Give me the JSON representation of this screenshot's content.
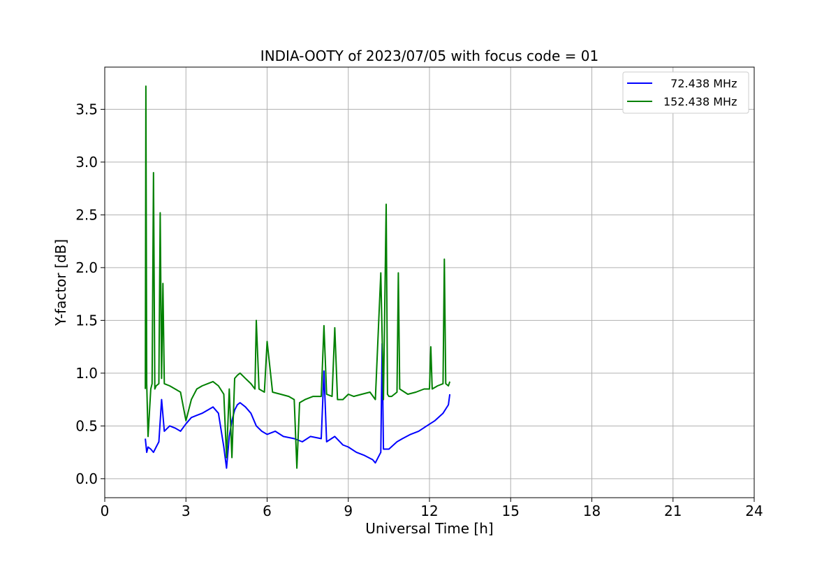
{
  "chart_data": {
    "type": "line",
    "title": "INDIA-OOTY of 2023/07/05 with focus code = 01",
    "xlabel": "Universal Time [h]",
    "ylabel": "Y-factor [dB]",
    "xlim": [
      0,
      24
    ],
    "ylim": [
      -0.18,
      3.9
    ],
    "xticks": [
      0,
      3,
      6,
      9,
      12,
      15,
      18,
      21,
      24
    ],
    "xtick_labels": [
      "0",
      "3",
      "6",
      "9",
      "12",
      "15",
      "18",
      "21",
      "24"
    ],
    "yticks": [
      0.0,
      0.5,
      1.0,
      1.5,
      2.0,
      2.5,
      3.0,
      3.5
    ],
    "ytick_labels": [
      "0.0",
      "0.5",
      "1.0",
      "1.5",
      "2.0",
      "2.5",
      "3.0",
      "3.5"
    ],
    "grid": true,
    "legend_position": "top-right",
    "series": [
      {
        "name": "  72.438 MHz",
        "color": "#0000ff",
        "x": [
          1.5,
          1.55,
          1.6,
          1.7,
          1.8,
          1.9,
          2.0,
          2.1,
          2.2,
          2.4,
          2.6,
          2.8,
          3.0,
          3.2,
          3.4,
          3.6,
          3.8,
          4.0,
          4.2,
          4.4,
          4.5,
          4.6,
          4.7,
          4.8,
          4.9,
          5.0,
          5.2,
          5.4,
          5.6,
          5.8,
          6.0,
          6.3,
          6.6,
          7.0,
          7.3,
          7.6,
          8.0,
          8.1,
          8.2,
          8.5,
          8.8,
          9.0,
          9.3,
          9.6,
          9.9,
          10.0,
          10.1,
          10.2,
          10.25,
          10.3,
          10.5,
          10.8,
          11.0,
          11.3,
          11.6,
          11.9,
          12.2,
          12.5,
          12.7,
          12.75
        ],
        "y": [
          0.38,
          0.25,
          0.3,
          0.28,
          0.25,
          0.3,
          0.35,
          0.75,
          0.45,
          0.5,
          0.48,
          0.45,
          0.52,
          0.58,
          0.6,
          0.62,
          0.65,
          0.68,
          0.62,
          0.3,
          0.1,
          0.4,
          0.55,
          0.65,
          0.7,
          0.72,
          0.68,
          0.62,
          0.5,
          0.45,
          0.42,
          0.45,
          0.4,
          0.38,
          0.35,
          0.4,
          0.38,
          1.02,
          0.35,
          0.4,
          0.32,
          0.3,
          0.25,
          0.22,
          0.18,
          0.15,
          0.2,
          0.25,
          1.28,
          0.28,
          0.28,
          0.35,
          0.38,
          0.42,
          0.45,
          0.5,
          0.55,
          0.62,
          0.7,
          0.8
        ]
      },
      {
        "name": "152.438 MHz",
        "color": "#008000",
        "x": [
          1.5,
          1.52,
          1.55,
          1.6,
          1.7,
          1.75,
          1.8,
          1.85,
          1.9,
          2.0,
          2.05,
          2.1,
          2.15,
          2.2,
          2.4,
          2.6,
          2.8,
          3.0,
          3.2,
          3.4,
          3.6,
          3.8,
          4.0,
          4.2,
          4.4,
          4.5,
          4.6,
          4.7,
          4.8,
          4.9,
          5.0,
          5.2,
          5.4,
          5.55,
          5.6,
          5.7,
          5.9,
          6.0,
          6.2,
          6.5,
          6.8,
          7.0,
          7.1,
          7.2,
          7.4,
          7.7,
          8.0,
          8.1,
          8.2,
          8.4,
          8.5,
          8.6,
          8.8,
          9.0,
          9.2,
          9.5,
          9.8,
          10.0,
          10.2,
          10.3,
          10.4,
          10.45,
          10.5,
          10.6,
          10.8,
          10.85,
          10.9,
          11.2,
          11.5,
          11.8,
          12.0,
          12.05,
          12.1,
          12.3,
          12.5,
          12.55,
          12.6,
          12.7,
          12.75
        ],
        "y": [
          0.85,
          3.72,
          0.9,
          0.4,
          0.85,
          0.9,
          2.9,
          0.85,
          0.88,
          0.9,
          2.52,
          0.95,
          1.85,
          0.9,
          0.88,
          0.85,
          0.82,
          0.55,
          0.75,
          0.85,
          0.88,
          0.9,
          0.92,
          0.88,
          0.8,
          0.2,
          0.85,
          0.2,
          0.95,
          0.98,
          1.0,
          0.95,
          0.9,
          0.85,
          1.5,
          0.85,
          0.82,
          1.3,
          0.82,
          0.8,
          0.78,
          0.75,
          0.1,
          0.72,
          0.75,
          0.78,
          0.78,
          1.45,
          0.8,
          0.78,
          1.43,
          0.75,
          0.75,
          0.8,
          0.78,
          0.8,
          0.82,
          0.75,
          1.95,
          0.75,
          2.6,
          0.8,
          0.78,
          0.78,
          0.82,
          1.95,
          0.85,
          0.8,
          0.82,
          0.85,
          0.85,
          1.25,
          0.85,
          0.88,
          0.9,
          2.08,
          0.9,
          0.88,
          0.92
        ]
      }
    ]
  }
}
